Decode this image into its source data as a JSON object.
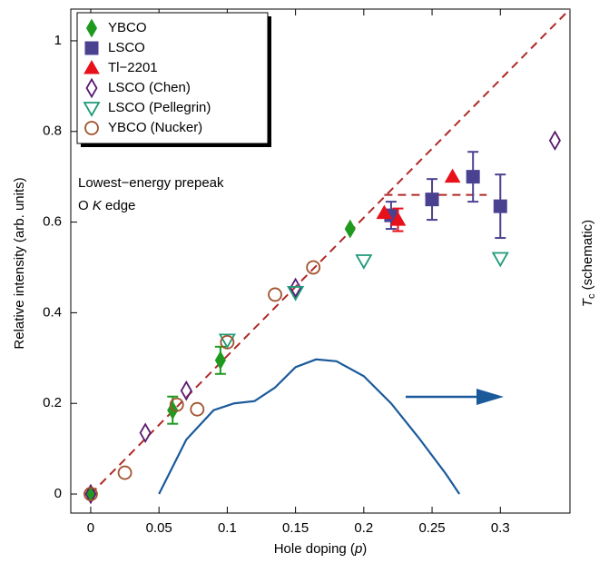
{
  "chart_data": {
    "type": "scatter",
    "xlabel": [
      "Hole doping (",
      "p",
      ")"
    ],
    "ylabel": "Relative intensity (arb. units)",
    "y2label": [
      "T",
      "c",
      " (schematic)"
    ],
    "annotations": [
      "Lowest−energy prepeak",
      [
        "O ",
        "K",
        " edge"
      ]
    ],
    "xlim": [
      -0.0146,
      0.351
    ],
    "ylim": [
      -0.042,
      1.07
    ],
    "xticks": [
      0,
      0.05,
      0.1,
      0.15,
      0.2,
      0.25,
      0.3
    ],
    "yticks": [
      0,
      0.2,
      0.4,
      0.6,
      0.8,
      1
    ],
    "legend": "upper left",
    "series": [
      {
        "name": "YBCO",
        "marker": "diamond",
        "filled": true,
        "color": "#1f9a1f",
        "x": [
          0,
          0.06,
          0.095,
          0.19
        ],
        "values": [
          0,
          0.185,
          0.295,
          0.585
        ],
        "errors": [
          null,
          0.03,
          0.03,
          null
        ]
      },
      {
        "name": "LSCO",
        "marker": "square",
        "filled": true,
        "color": "#4a4290",
        "x": [
          0.22,
          0.25,
          0.28,
          0.3
        ],
        "values": [
          0.615,
          0.65,
          0.7,
          0.635
        ],
        "errors": [
          0.03,
          0.045,
          0.055,
          0.07
        ]
      },
      {
        "name": "Tl−2201",
        "marker": "triangle-up",
        "filled": true,
        "color": "#e8101a",
        "x": [
          0.215,
          0.225,
          0.265
        ],
        "values": [
          0.62,
          0.605,
          0.7
        ],
        "errors": [
          null,
          0.025,
          null
        ]
      },
      {
        "name": "LSCO (Chen)",
        "marker": "diamond",
        "filled": false,
        "color": "#5a1a70",
        "x": [
          0,
          0.04,
          0.07,
          0.15,
          0.34
        ],
        "values": [
          0,
          0.135,
          0.228,
          0.455,
          0.78
        ]
      },
      {
        "name": "LSCO (Pellegrin)",
        "marker": "triangle-down",
        "filled": false,
        "color": "#1f9a7a",
        "x": [
          0.1,
          0.15,
          0.2,
          0.3
        ],
        "values": [
          0.34,
          0.445,
          0.515,
          0.52
        ]
      },
      {
        "name": "YBCO (Nucker)",
        "marker": "circle",
        "filled": false,
        "color": "#a0522d",
        "x": [
          0,
          0.025,
          0.063,
          0.078,
          0.1,
          0.135,
          0.163
        ],
        "values": [
          0,
          0.047,
          0.197,
          0.187,
          0.335,
          0.44,
          0.5
        ]
      }
    ],
    "lines": [
      {
        "style": "dashed",
        "color": "#b02828",
        "x": [
          0,
          0.351
        ],
        "values": [
          0,
          1.07
        ]
      },
      {
        "style": "dashed",
        "color": "#b02828",
        "x": [
          0.215,
          0.29
        ],
        "values": [
          0.66,
          0.66
        ]
      },
      {
        "style": "solid",
        "color": "#1a5a9a",
        "x": [
          0.05,
          0.07,
          0.09,
          0.105,
          0.12,
          0.135,
          0.15,
          0.165,
          0.18,
          0.2,
          0.22,
          0.24,
          0.26,
          0.27
        ],
        "values": [
          0,
          0.12,
          0.185,
          0.2,
          0.205,
          0.235,
          0.28,
          0.297,
          0.293,
          0.26,
          0.2,
          0.125,
          0.045,
          0
        ]
      }
    ]
  }
}
